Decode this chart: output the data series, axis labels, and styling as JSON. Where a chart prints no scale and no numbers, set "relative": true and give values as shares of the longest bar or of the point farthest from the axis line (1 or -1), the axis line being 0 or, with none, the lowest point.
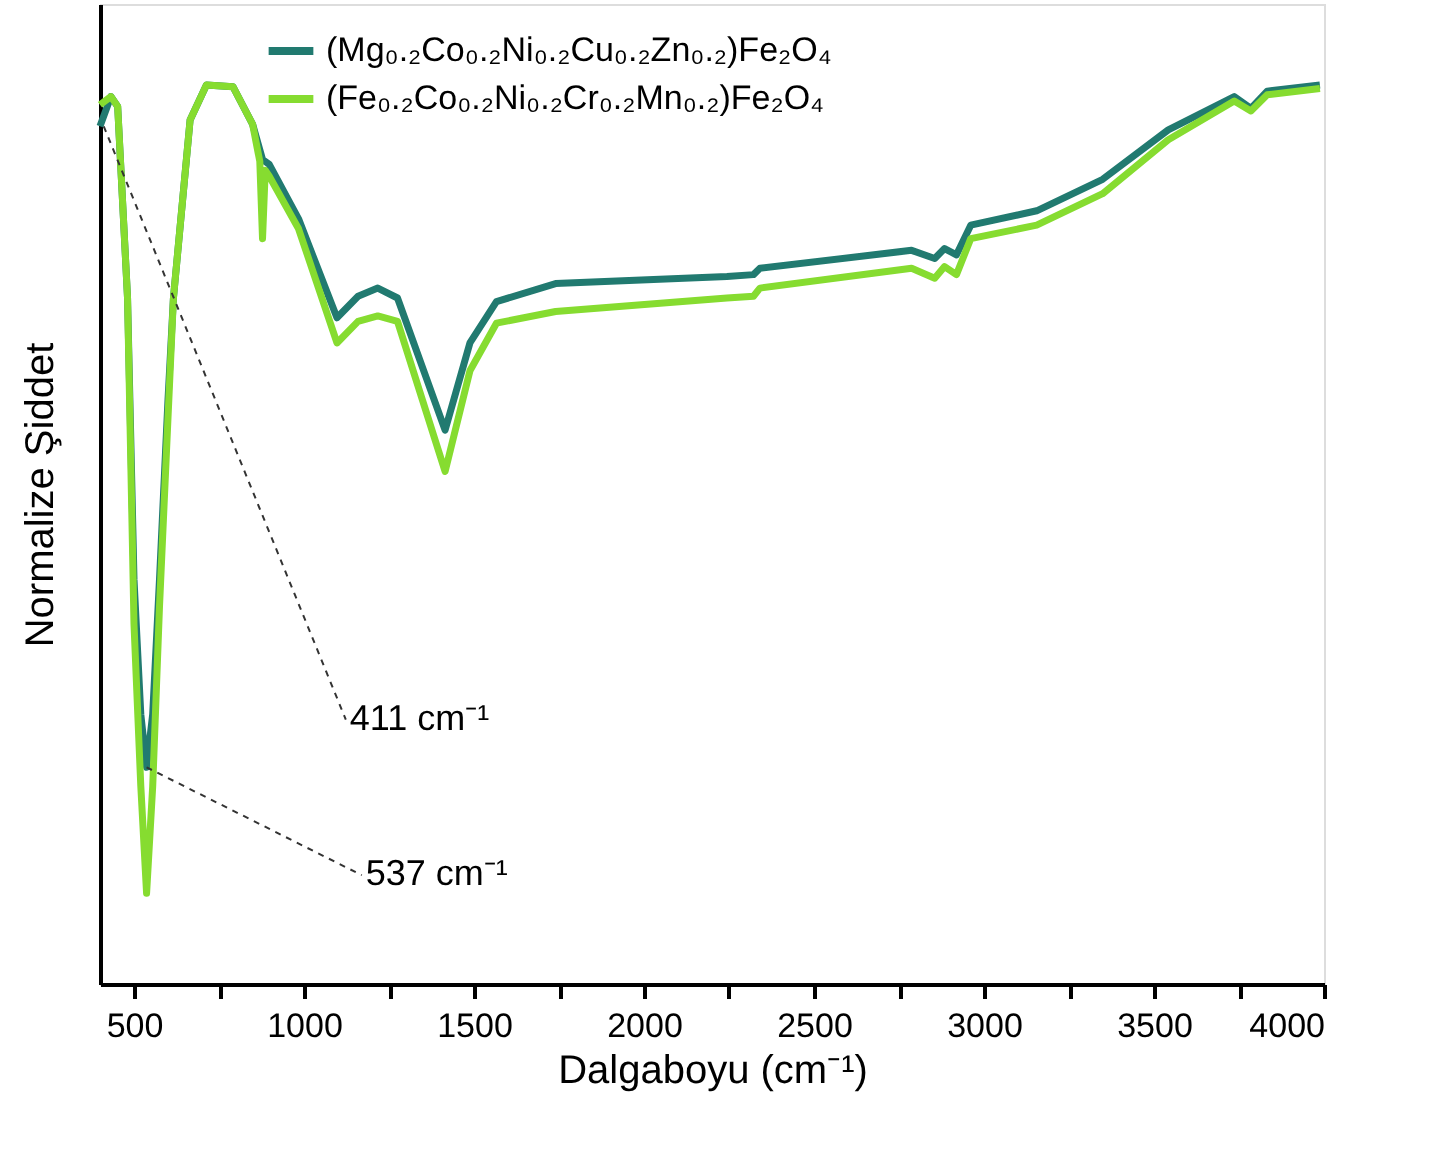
{
  "chart_data": {
    "type": "line",
    "relative": true,
    "xlabel": "Dalgaboyu (cm⁻¹)",
    "ylabel": "Normalize Şiddet",
    "xlim": [
      400,
      4000
    ],
    "xticks": [
      500,
      {
        "value": 750,
        "label": null
      },
      1000,
      {
        "value": 1250,
        "label": null
      },
      1500,
      {
        "value": 1750,
        "label": null
      },
      2000,
      {
        "value": 2250,
        "label": null
      },
      2500,
      {
        "value": 2750,
        "label": null
      },
      3000,
      {
        "value": 3250,
        "label": null
      },
      3500,
      {
        "value": 3750,
        "label": null
      },
      4000
    ],
    "grid": false,
    "legend": "top",
    "marker": "none",
    "line_style": "solid",
    "series": [
      {
        "name": "(Mg₀.₂Co₀.₂Ni₀.₂Cu₀.₂Zn₀.₂)Fe₂O₄",
        "color": "#217a70",
        "x": [
          400,
          432,
          452,
          481,
          500,
          520,
          537,
          555,
          575,
          600,
          616,
          665,
          713,
          791,
          849,
          878,
          897,
          984,
          1097,
          1159,
          1217,
          1275,
          1415,
          1488,
          1566,
          1740,
          2244,
          2322,
          2341,
          2787,
          2855,
          2884,
          2919,
          2961,
          3155,
          3349,
          3542,
          3736,
          3785,
          3833,
          3988
        ],
        "values": [
          0.954,
          0.987,
          0.976,
          0.763,
          0.45,
          0.3,
          0.241,
          0.3,
          0.45,
          0.65,
          0.763,
          0.961,
          1,
          0.998,
          0.956,
          0.917,
          0.912,
          0.851,
          0.741,
          0.765,
          0.774,
          0.763,
          0.616,
          0.713,
          0.759,
          0.779,
          0.787,
          0.789,
          0.796,
          0.816,
          0.807,
          0.818,
          0.811,
          0.844,
          0.86,
          0.895,
          0.95,
          0.987,
          0.974,
          0.993,
          1.0
        ]
      },
      {
        "name": "(Fe₀.₂Co₀.₂Ni₀.₂Cr₀.₂Mn₀.₂)Fe₂O₄",
        "color": "#86dc30",
        "x": [
          400,
          432,
          452,
          481,
          500,
          520,
          537,
          555,
          575,
          600,
          616,
          665,
          713,
          791,
          849,
          870,
          878,
          886,
          897,
          984,
          1097,
          1159,
          1217,
          1275,
          1415,
          1488,
          1566,
          1740,
          2244,
          2322,
          2341,
          2787,
          2855,
          2884,
          2919,
          2961,
          3155,
          3349,
          3542,
          3736,
          3785,
          3833,
          3988
        ],
        "values": [
          0.978,
          0.987,
          0.976,
          0.763,
          0.4,
          0.22,
          0.101,
          0.22,
          0.42,
          0.63,
          0.763,
          0.961,
          1,
          0.998,
          0.956,
          0.915,
          0.829,
          0.905,
          0.899,
          0.84,
          0.713,
          0.737,
          0.743,
          0.737,
          0.57,
          0.682,
          0.735,
          0.748,
          0.763,
          0.765,
          0.774,
          0.796,
          0.785,
          0.798,
          0.789,
          0.829,
          0.844,
          0.879,
          0.939,
          0.982,
          0.971,
          0.989,
          0.996
        ]
      }
    ],
    "annotations": [
      {
        "text": "411 cm⁻¹",
        "x": 411,
        "y": 0.954
      },
      {
        "text": "537 cm⁻¹",
        "x": 537,
        "y": 0.241
      }
    ]
  }
}
